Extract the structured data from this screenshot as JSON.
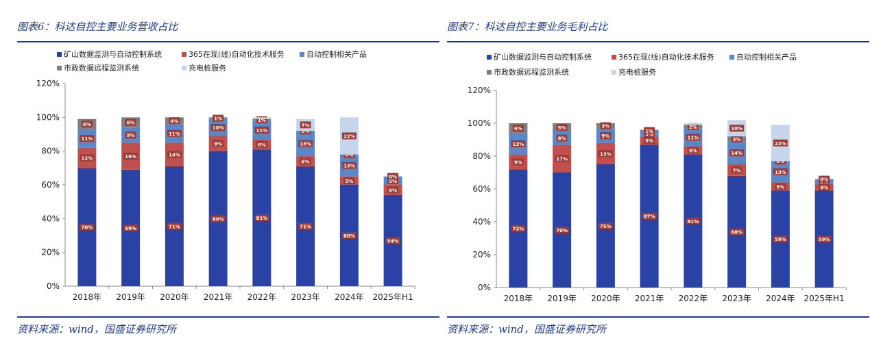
{
  "colors": {
    "mining": "#2942a3",
    "s365": "#c0504d",
    "automation": "#5b87c8",
    "municipal": "#7f7f7f",
    "charging": "#c6d5ec",
    "title_blue": "#1f3a93",
    "label_box": "#9c3b35"
  },
  "panels": [
    {
      "title": "图表6：科达自控主要业务营收占比",
      "source": "资料来源：wind，国盛证券研究所",
      "chart_data": {
        "type": "bar",
        "stacked": true,
        "categories": [
          "2018年",
          "2019年",
          "2020年",
          "2021年",
          "2022年",
          "2023年",
          "2024年",
          "2025年H1"
        ],
        "ylim": [
          0,
          120
        ],
        "y_ticks": [
          "0%",
          "20%",
          "40%",
          "60%",
          "80%",
          "100%",
          "120%"
        ],
        "legend_position": "top-left",
        "series": [
          {
            "name": "矿山数据监测与自动控制系统",
            "color_key": "mining",
            "values": [
              70,
              69,
              71,
              80,
              81,
              71,
              60,
              54
            ],
            "labels": [
              "70%",
              "69%",
              "71%",
              "80%",
              "81%",
              "71%",
              "60%",
              "54%"
            ]
          },
          {
            "name": "365在现(线)自动化技术服务",
            "color_key": "s365",
            "values": [
              12,
              16,
              14,
              9,
              6,
              6,
              5,
              6
            ],
            "labels": [
              "12%",
              "16%",
              "14%",
              "9%",
              "6%",
              "6%",
              "5%",
              "6%"
            ]
          },
          {
            "name": "自动控制相关产品",
            "color_key": "automation",
            "values": [
              11,
              9,
              11,
              10,
              11,
              15,
              13,
              5
            ],
            "labels": [
              "11%",
              "9%",
              "11%",
              "10%",
              "11%",
              "15%",
              "13%",
              "5%"
            ]
          },
          {
            "name": "市政数据远程监测系统",
            "color_key": "municipal",
            "values": [
              6,
              6,
              4,
              1,
              1,
              0,
              0,
              0
            ],
            "labels": [
              "6%",
              "6%",
              "4%",
              "1%",
              "1%",
              "0%",
              "0%",
              "0%"
            ]
          },
          {
            "name": "充电桩服务",
            "color_key": "charging",
            "values": [
              0,
              0,
              0,
              0,
              1,
              7,
              22,
              0
            ],
            "labels": [
              "",
              "",
              "",
              "",
              "",
              "7%",
              "22%",
              ""
            ]
          }
        ]
      }
    },
    {
      "title": "图表7：科达自控主要业务毛利占比",
      "source": "资料来源：wind，国盛证券研究所",
      "chart_data": {
        "type": "bar",
        "stacked": true,
        "categories": [
          "2018年",
          "2019年",
          "2020年",
          "2021年",
          "2022年",
          "2023年",
          "2024年",
          "2025年H1"
        ],
        "ylim": [
          0,
          120
        ],
        "y_ticks": [
          "0%",
          "20%",
          "40%",
          "60%",
          "80%",
          "100%",
          "120%"
        ],
        "legend_position": "top-left",
        "series": [
          {
            "name": "矿山数据监测与自动控制系统",
            "color_key": "mining",
            "values": [
              72,
              70,
              75,
              87,
              81,
              68,
              59,
              59
            ],
            "labels": [
              "72%",
              "70%",
              "75%",
              "87%",
              "81%",
              "68%",
              "59%",
              "59%"
            ]
          },
          {
            "name": "365在现(线)自动化技术服务",
            "color_key": "s365",
            "values": [
              9,
              17,
              13,
              5,
              5,
              7,
              5,
              4
            ],
            "labels": [
              "9%",
              "17%",
              "13%",
              "5%",
              "5%",
              "7%",
              "5%",
              "4%"
            ]
          },
          {
            "name": "自动控制相关产品",
            "color_key": "automation",
            "values": [
              13,
              8,
              9,
              3,
              11,
              14,
              13,
              3
            ],
            "labels": [
              "13%",
              "8%",
              "9%",
              "3%",
              "11%",
              "14%",
              "13%",
              "3%"
            ]
          },
          {
            "name": "市政数据远程监测系统",
            "color_key": "municipal",
            "values": [
              6,
              5,
              3,
              1,
              2,
              3,
              0,
              0
            ],
            "labels": [
              "6%",
              "5%",
              "3%",
              "1%",
              "2%",
              "3%",
              "0%",
              "0%"
            ]
          },
          {
            "name": "充电桩服务",
            "color_key": "charging",
            "values": [
              0,
              0,
              0,
              0,
              1,
              10,
              22,
              0
            ],
            "labels": [
              "",
              "",
              "",
              "",
              "",
              "10%",
              "22%",
              ""
            ]
          }
        ]
      }
    }
  ]
}
